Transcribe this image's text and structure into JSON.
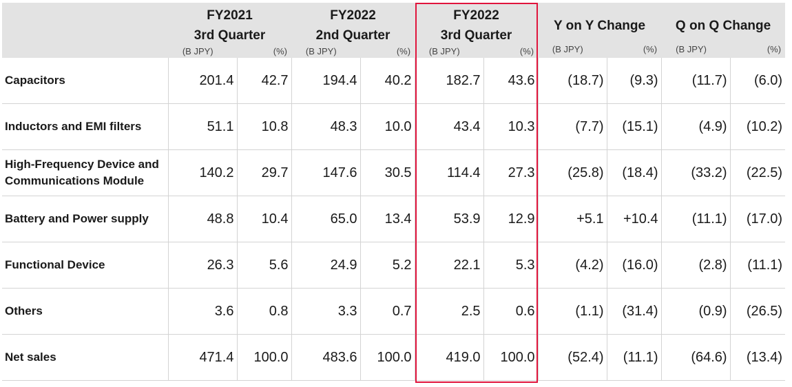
{
  "table": {
    "groups": [
      {
        "line1": "FY2021",
        "line2": "3rd Quarter",
        "unit1": "(B JPY)",
        "unit2": "(%)"
      },
      {
        "line1": "FY2022",
        "line2": "2nd Quarter",
        "unit1": "(B JPY)",
        "unit2": "(%)"
      },
      {
        "line1": "FY2022",
        "line2": "3rd Quarter",
        "unit1": "(B JPY)",
        "unit2": "(%)"
      },
      {
        "line1": "Y on Y Change",
        "line2": "",
        "unit1": "(B JPY)",
        "unit2": "(%)"
      },
      {
        "line1": "Q on Q Change",
        "line2": "",
        "unit1": "(B JPY)",
        "unit2": "(%)"
      }
    ],
    "rows": [
      {
        "label": "Capacitors",
        "values": [
          "201.4",
          "42.7",
          "194.4",
          "40.2",
          "182.7",
          "43.6",
          "(18.7)",
          "(9.3)",
          "(11.7)",
          "(6.0)"
        ]
      },
      {
        "label": "Inductors and EMI filters",
        "values": [
          "51.1",
          "10.8",
          "48.3",
          "10.0",
          "43.4",
          "10.3",
          "(7.7)",
          "(15.1)",
          "(4.9)",
          "(10.2)"
        ]
      },
      {
        "label": "High-Frequency Device and Communications Module",
        "values": [
          "140.2",
          "29.7",
          "147.6",
          "30.5",
          "114.4",
          "27.3",
          "(25.8)",
          "(18.4)",
          "(33.2)",
          "(22.5)"
        ]
      },
      {
        "label": "Battery and Power supply",
        "values": [
          "48.8",
          "10.4",
          "65.0",
          "13.4",
          "53.9",
          "12.9",
          "+5.1",
          "+10.4",
          "(11.1)",
          "(17.0)"
        ]
      },
      {
        "label": "Functional Device",
        "values": [
          "26.3",
          "5.6",
          "24.9",
          "5.2",
          "22.1",
          "5.3",
          "(4.2)",
          "(16.0)",
          "(2.8)",
          "(11.1)"
        ]
      },
      {
        "label": "Others",
        "values": [
          "3.6",
          "0.8",
          "3.3",
          "0.7",
          "2.5",
          "0.6",
          "(1.1)",
          "(31.4)",
          "(0.9)",
          "(26.5)"
        ]
      },
      {
        "label": "Net sales",
        "values": [
          "471.4",
          "100.0",
          "483.6",
          "100.0",
          "419.0",
          "100.0",
          "(52.4)",
          "(11.1)",
          "(64.6)",
          "(13.4)"
        ]
      }
    ]
  }
}
